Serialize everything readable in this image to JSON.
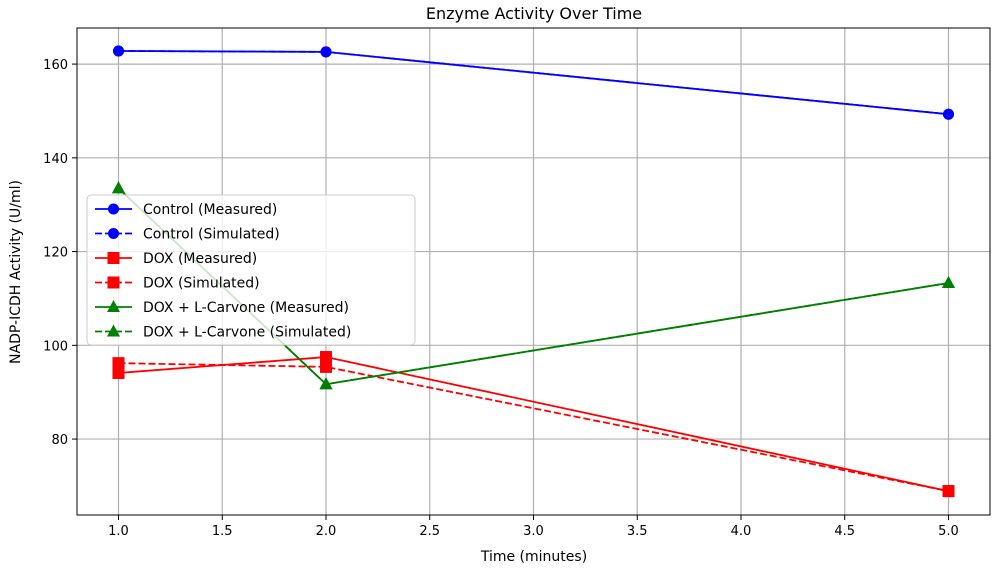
{
  "chart_data": {
    "type": "line",
    "title": "Enzyme Activity Over Time",
    "xlabel": "Time (minutes)",
    "ylabel": "NADP-ICDH Activity (U/ml)",
    "xlim": [
      0.8,
      5.2
    ],
    "ylim": [
      63.8,
      167.7
    ],
    "xticks": [
      1.0,
      1.5,
      2.0,
      2.5,
      3.0,
      3.5,
      4.0,
      4.5,
      5.0
    ],
    "xtick_labels": [
      "1.0",
      "1.5",
      "2.0",
      "2.5",
      "3.0",
      "3.5",
      "4.0",
      "4.5",
      "5.0"
    ],
    "yticks": [
      80,
      100,
      120,
      140,
      160
    ],
    "ytick_labels": [
      "80",
      "100",
      "120",
      "140",
      "160"
    ],
    "grid": true,
    "legend_position": "center-left",
    "x": [
      1,
      2,
      5
    ],
    "series": [
      {
        "name": "Control (Measured)",
        "values": [
          162.8,
          162.6,
          149.3
        ],
        "color": "#0000ff",
        "dash": false,
        "marker": "circle"
      },
      {
        "name": "Control (Simulated)",
        "values": [
          162.8,
          162.6,
          149.3
        ],
        "color": "#0000ff",
        "dash": true,
        "marker": "circle"
      },
      {
        "name": "DOX (Measured)",
        "values": [
          94.1,
          97.5,
          68.9
        ],
        "color": "#ff0000",
        "dash": false,
        "marker": "square"
      },
      {
        "name": "DOX (Simulated)",
        "values": [
          96.2,
          95.4,
          68.9
        ],
        "color": "#ff0000",
        "dash": true,
        "marker": "square"
      },
      {
        "name": "DOX + L-Carvone (Measured)",
        "values": [
          133.5,
          91.7,
          113.3
        ],
        "color": "#008000",
        "dash": false,
        "marker": "triangle"
      },
      {
        "name": "DOX + L-Carvone (Simulated)",
        "values": [
          133.5,
          91.7,
          113.3
        ],
        "color": "#008000",
        "dash": true,
        "marker": "triangle"
      }
    ]
  }
}
